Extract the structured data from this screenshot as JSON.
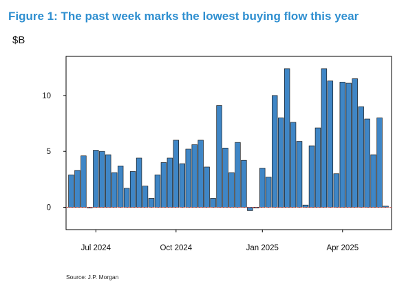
{
  "header": {
    "title": "Figure 1: The past week marks the lowest buying flow this year",
    "unit": "$B"
  },
  "footer": {
    "source": "Source: J.P. Morgan"
  },
  "colors": {
    "bar": "#3f86c6",
    "bar_edge": "#1a1a1a",
    "zero_line": "#c0504d",
    "title": "#2f8fd0"
  },
  "chart_data": {
    "type": "bar",
    "title": "Figure 1: The past week marks the lowest buying flow this year",
    "ylabel": "$B",
    "xlabel": "",
    "ylim": [
      -2,
      13.5
    ],
    "yticks": [
      0,
      5,
      10
    ],
    "xtick_labels": [
      "Jul 2024",
      "Oct 2024",
      "Jan 2025",
      "Apr 2025"
    ],
    "xtick_indices": [
      4,
      17,
      31,
      44
    ],
    "grid": false,
    "legend": "none",
    "zero_line_style": "dashed",
    "values": [
      2.9,
      3.3,
      4.6,
      0.0,
      5.1,
      5.0,
      4.7,
      3.1,
      3.7,
      1.7,
      3.2,
      4.4,
      1.9,
      0.8,
      2.9,
      4.0,
      4.4,
      6.0,
      3.9,
      5.2,
      5.6,
      6.0,
      3.6,
      0.8,
      9.1,
      5.3,
      3.1,
      5.8,
      4.2,
      -0.3,
      0.0,
      3.5,
      2.7,
      10.0,
      8.0,
      12.4,
      7.6,
      5.9,
      0.2,
      5.5,
      7.1,
      12.4,
      11.3,
      3.0,
      11.2,
      11.1,
      11.5,
      9.0,
      7.9,
      4.7,
      8.0,
      0.1
    ]
  }
}
